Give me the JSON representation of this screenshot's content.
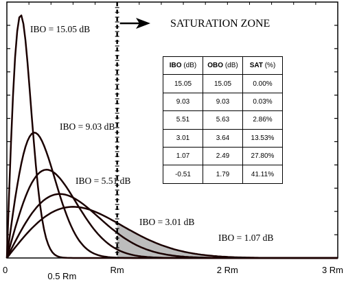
{
  "chart_data": {
    "type": "line",
    "x_ticks": [
      "0",
      "0.5 Rm",
      "Rm",
      "2 Rm",
      "3 Rm"
    ],
    "x_tick_values": [
      0,
      0.5,
      1,
      2,
      3
    ],
    "xlim": [
      0,
      3
    ],
    "ylim": [
      0,
      1
    ],
    "grid": false,
    "zone_label": "SATURATION  ZONE",
    "zone_start": 1,
    "series": [
      {
        "name": "IBO = 15.05 dB",
        "ibo_db": 15.05,
        "peak_x": 0.125,
        "peak_y": 0.95
      },
      {
        "name": "IBO = 9.03 dB",
        "ibo_db": 9.03,
        "peak_x": 0.25,
        "peak_y": 0.49
      },
      {
        "name": "IBO = 5.51 dB",
        "ibo_db": 5.51,
        "peak_x": 0.36,
        "peak_y": 0.345
      },
      {
        "name": "IBO = 3.01 dB",
        "ibo_db": 3.01,
        "peak_x": 0.48,
        "peak_y": 0.25
      },
      {
        "name": "IBO = 1.07 dB",
        "ibo_db": 1.07,
        "peak_x": 0.6,
        "peak_y": 0.2
      }
    ],
    "shaded_series": "IBO = 1.07 dB",
    "table": {
      "headers": [
        {
          "bold": "IBO",
          "unit": " (dB)"
        },
        {
          "bold": "OBO",
          "unit": " (dB)"
        },
        {
          "bold": "SAT",
          "unit": " (%)"
        }
      ],
      "rows": [
        [
          "15.05",
          "15.05",
          "0.00%"
        ],
        [
          "9.03",
          "9.03",
          "0.03%"
        ],
        [
          "5.51",
          "5.63",
          "2.86%"
        ],
        [
          "3.01",
          "3.64",
          "13.53%"
        ],
        [
          "1.07",
          "2.49",
          "27.80%"
        ],
        [
          "-0.51",
          "1.79",
          "41.11%"
        ]
      ]
    }
  }
}
